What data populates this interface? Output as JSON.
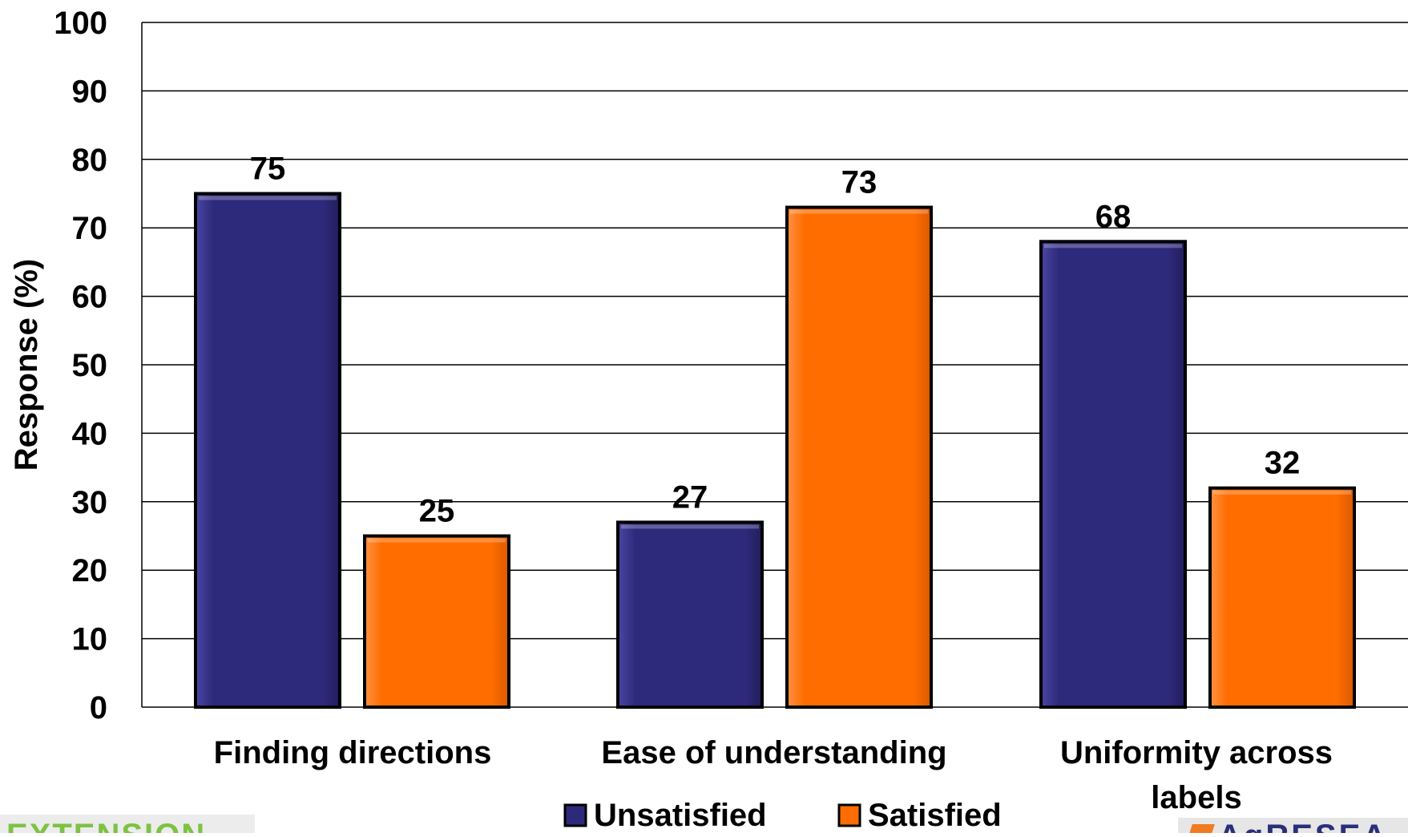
{
  "chart_data": {
    "type": "bar",
    "categories": [
      "Finding directions",
      "Ease of understanding",
      "Uniformity across labels"
    ],
    "category_lines": [
      [
        "Finding directions"
      ],
      [
        "Ease of understanding"
      ],
      [
        "Uniformity across",
        "labels"
      ]
    ],
    "series": [
      {
        "name": "Unsatisfied",
        "values": [
          75,
          27,
          68
        ],
        "color": "#2e2a7b"
      },
      {
        "name": "Satisfied",
        "values": [
          25,
          73,
          32
        ],
        "color": "#ff6d00"
      }
    ],
    "ylabel": "Response (%)",
    "xlabel": "",
    "ylim": [
      0,
      100
    ],
    "yticks": [
      0,
      10,
      20,
      30,
      40,
      50,
      60,
      70,
      80,
      90,
      100
    ],
    "grid": true,
    "legend": "bottom"
  },
  "branding": {
    "left_text": "EXTENSION",
    "right_text": "AgRESEA"
  }
}
